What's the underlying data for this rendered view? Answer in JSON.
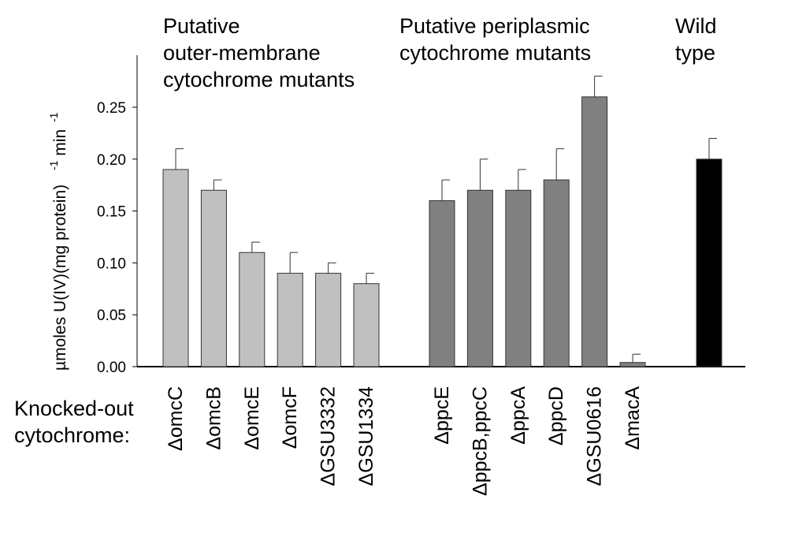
{
  "chart_data": {
    "type": "bar",
    "title": "",
    "ylabel": "µmoles U(IV)(mg protein) -1 min -1",
    "ylabel_parts": {
      "main": "µmoles U(IV)(mg protein)",
      "exp1": "-1",
      "unit": "min",
      "exp2": "-1"
    },
    "xlabel_lines": [
      "Knocked-out",
      "cytochrome:"
    ],
    "ylim": [
      0,
      0.29
    ],
    "yticks": [
      "0.00",
      "0.05",
      "0.10",
      "0.15",
      "0.20",
      "0.25"
    ],
    "ytick_values": [
      0,
      0.05,
      0.1,
      0.15,
      0.2,
      0.25
    ],
    "grid": false,
    "legend": "none",
    "groups": [
      {
        "label_lines": [
          "Putative",
          "outer-membrane",
          "cytochrome mutants"
        ],
        "color": "#c0c0c0",
        "categories": [
          "ΔomcC",
          "ΔomcB",
          "ΔomcE",
          "ΔomcF",
          "ΔGSU3332",
          "ΔGSU1334"
        ],
        "values": [
          0.19,
          0.17,
          0.11,
          0.09,
          0.09,
          0.08
        ],
        "errors": [
          0.02,
          0.01,
          0.01,
          0.02,
          0.01,
          0.01
        ]
      },
      {
        "label_lines": [
          "Putative periplasmic",
          "cytochrome mutants"
        ],
        "color": "#808080",
        "categories": [
          "ΔppcE",
          "ΔppcB,ppcC",
          "ΔppcA",
          "ΔppcD",
          "ΔGSU0616",
          "ΔmacA"
        ],
        "values": [
          0.16,
          0.17,
          0.17,
          0.18,
          0.26,
          0.004
        ],
        "errors": [
          0.02,
          0.03,
          0.02,
          0.03,
          0.02,
          0.008
        ]
      },
      {
        "label_lines": [
          "Wild",
          "type"
        ],
        "color": "#000000",
        "categories": [
          ""
        ],
        "values": [
          0.2
        ],
        "errors": [
          0.02
        ]
      }
    ]
  }
}
